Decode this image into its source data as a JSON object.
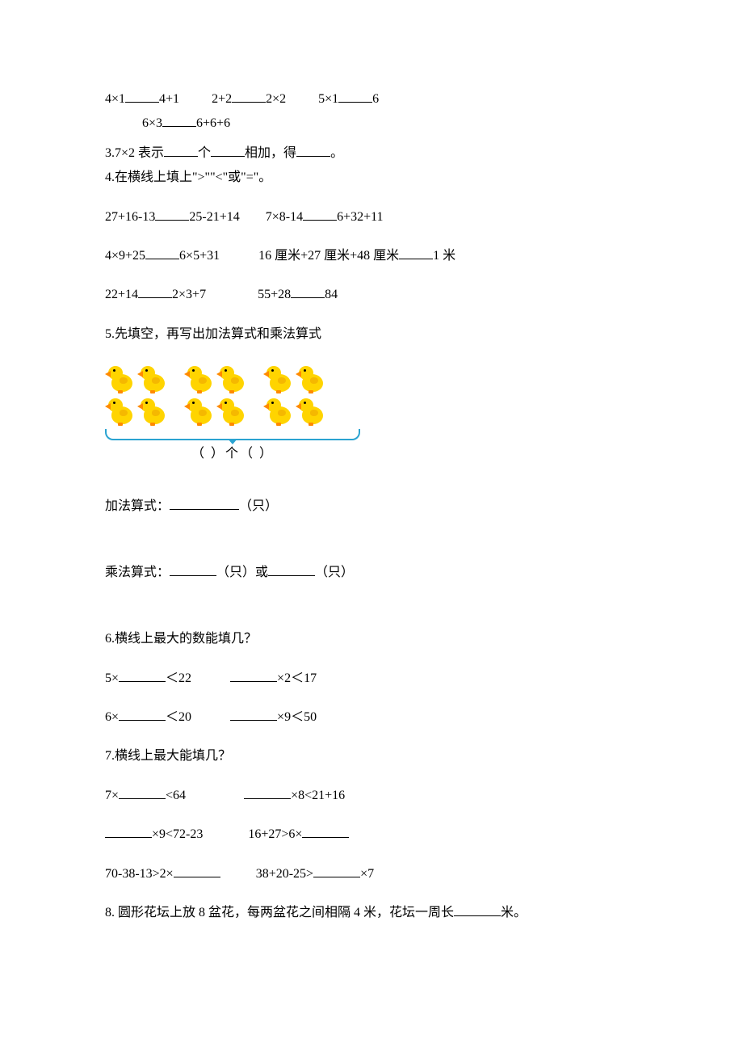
{
  "colors": {
    "text": "#000000",
    "bg": "#ffffff",
    "duck_body": "#ffd400",
    "duck_wing": "#f5b800",
    "duck_beak": "#ff8a00",
    "bracket": "#2aa3d1"
  },
  "font": {
    "family": "SimSun",
    "size_pt": 12
  },
  "q_top": {
    "pairs": [
      {
        "a": "4×1",
        "b": "4+1"
      },
      {
        "a": "2+2",
        "b": "2×2"
      },
      {
        "a": "5×1",
        "b": "6"
      },
      {
        "a": "6×3",
        "b": "6+6+6"
      }
    ]
  },
  "q3": {
    "prefix": "3.7×2 表示",
    "mid1": "个",
    "mid2": "相加，得",
    "suffix": "。"
  },
  "q4": {
    "title": "4.在横线上填上\">\"\"<\"或\"=\"。",
    "rows": [
      {
        "l": "27+16-13",
        "r": "25-21+14",
        "l2": "7×8-14",
        "r2": "6+32+11"
      },
      {
        "l": "4×9+25",
        "r": "6×5+31",
        "l2": "16 厘米+27 厘米+48 厘米",
        "r2": "1 米"
      },
      {
        "l": "22+14",
        "r": "2×3+7",
        "l2": "55+28",
        "r2": "84"
      }
    ]
  },
  "q5": {
    "title": "5.先填空，再写出加法算式和乘法算式",
    "image": {
      "type": "infographic",
      "groups": 3,
      "per_group": 4,
      "bracket_label": "（   ）个（   ）"
    },
    "add_label": "加法算式：",
    "add_unit": "（只）",
    "mul_label": "乘法算式：",
    "mul_mid": "（只）或",
    "mul_unit": "（只）"
  },
  "q6": {
    "title": "6.横线上最大的数能填几？",
    "rows": [
      {
        "l": "5×",
        "op": "＜22",
        "l2": "",
        "op2": "×2＜17"
      },
      {
        "l": "6×",
        "op": "＜20",
        "l2": "",
        "op2": "×9＜50"
      }
    ]
  },
  "q7": {
    "title": "7.横线上最大能填几？",
    "rows": [
      {
        "l": "7×",
        "r": "<64",
        "l2": "",
        "r2": "×8<21+16"
      },
      {
        "l": "",
        "r": "×9<72-23",
        "l2": "16+27>6×",
        "r2": ""
      },
      {
        "l": "70-38-13>2×",
        "r": "",
        "l2": "38+20-25>",
        "r2": "×7"
      }
    ]
  },
  "q8": {
    "text_a": "8. 圆形花坛上放 8 盆花，每两盆花之间相隔 4 米，花坛一周长",
    "text_b": "米。"
  }
}
